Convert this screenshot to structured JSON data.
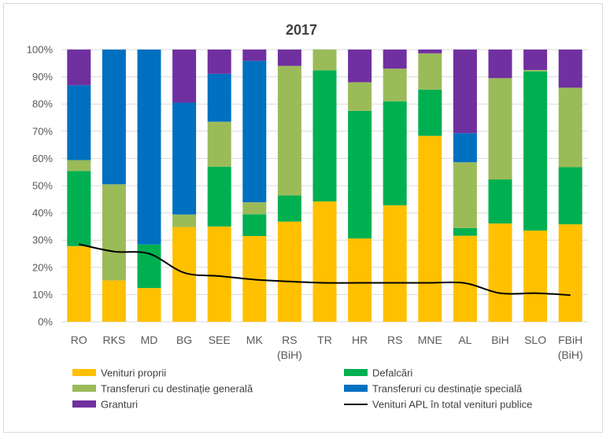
{
  "chart_data": {
    "type": "bar",
    "stacked": "percent",
    "title": "2017",
    "xlabel": "",
    "ylabel": "",
    "ylim": [
      0,
      100
    ],
    "yticks": [
      "0%",
      "10%",
      "20%",
      "30%",
      "40%",
      "50%",
      "60%",
      "70%",
      "80%",
      "90%",
      "100%"
    ],
    "categories": [
      [
        "RO"
      ],
      [
        "RKS"
      ],
      [
        "MD"
      ],
      [
        "BG"
      ],
      [
        "SEE"
      ],
      [
        "MK"
      ],
      [
        "RS",
        "(BiH)"
      ],
      [
        "TR"
      ],
      [
        "HR"
      ],
      [
        "RS"
      ],
      [
        "MNE"
      ],
      [
        "AL"
      ],
      [
        "BiH"
      ],
      [
        "SLO"
      ],
      [
        "FBiH",
        "(BiH)"
      ]
    ],
    "series": [
      {
        "name": "Venituri proprii",
        "color": "#FFC000",
        "values": [
          27.8,
          15.2,
          12.4,
          34.8,
          35.0,
          31.5,
          36.8,
          44.2,
          30.6,
          42.8,
          68.3,
          31.6,
          36.1,
          33.5,
          35.8
        ]
      },
      {
        "name": "Defalcări",
        "color": "#00B050",
        "values": [
          27.6,
          0,
          16.0,
          0,
          22.0,
          8.0,
          9.6,
          48.2,
          46.9,
          38.2,
          17.0,
          2.8,
          16.2,
          58.5,
          21.0
        ]
      },
      {
        "name": "Transferuri cu destinație generală",
        "color": "#9BBB59",
        "values": [
          4.0,
          35.3,
          0,
          4.6,
          16.5,
          4.4,
          47.6,
          7.6,
          10.5,
          12.0,
          13.3,
          24.2,
          37.2,
          0.5,
          29.2
        ]
      },
      {
        "name": "Transferuri cu destinație specială",
        "color": "#0070C0",
        "values": [
          27.5,
          49.5,
          71.6,
          41.1,
          17.6,
          52.0,
          0,
          0,
          0,
          0,
          0,
          10.7,
          0,
          0,
          0
        ]
      },
      {
        "name": "Granturi",
        "color": "#7030A0",
        "values": [
          13.1,
          0,
          0,
          19.5,
          8.9,
          4.1,
          6.0,
          0,
          12.0,
          7.0,
          1.4,
          30.7,
          10.5,
          7.5,
          14.0
        ]
      }
    ],
    "line": {
      "name": "Venituri APL în total venituri publice",
      "color": "#000000",
      "values": [
        28.5,
        25.8,
        25.0,
        18.0,
        16.8,
        15.5,
        14.8,
        14.3,
        14.3,
        14.3,
        14.3,
        14.2,
        10.5,
        10.5,
        9.8
      ]
    },
    "legend_position": "bottom",
    "grid": true
  }
}
